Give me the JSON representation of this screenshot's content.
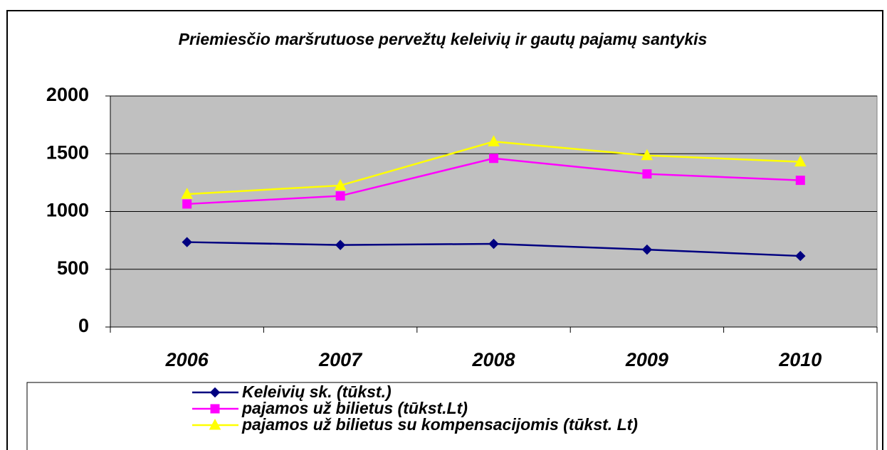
{
  "chart_data": {
    "type": "line",
    "title": "Priemiesčio maršrutuose pervežtų keleivių ir gautų pajamų santykis",
    "categories": [
      "2006",
      "2007",
      "2008",
      "2009",
      "2010"
    ],
    "series": [
      {
        "name": "Keleivių sk. (tūkst.)",
        "color": "#000080",
        "marker": "diamond",
        "values": [
          735,
          710,
          720,
          670,
          615
        ]
      },
      {
        "name": "pajamos už bilietus (tūkst.Lt)",
        "color": "#ff00ff",
        "marker": "square",
        "values": [
          1065,
          1135,
          1460,
          1325,
          1270
        ]
      },
      {
        "name": "pajamos už bilietus su kompensacijomis (tūkst. Lt)",
        "color": "#ffff00",
        "marker": "triangle",
        "values": [
          1150,
          1225,
          1605,
          1485,
          1430
        ]
      }
    ],
    "ylim": [
      0,
      2000
    ],
    "yticks": [
      0,
      500,
      1000,
      1500,
      2000
    ],
    "grid": true,
    "legend": "bottom"
  }
}
